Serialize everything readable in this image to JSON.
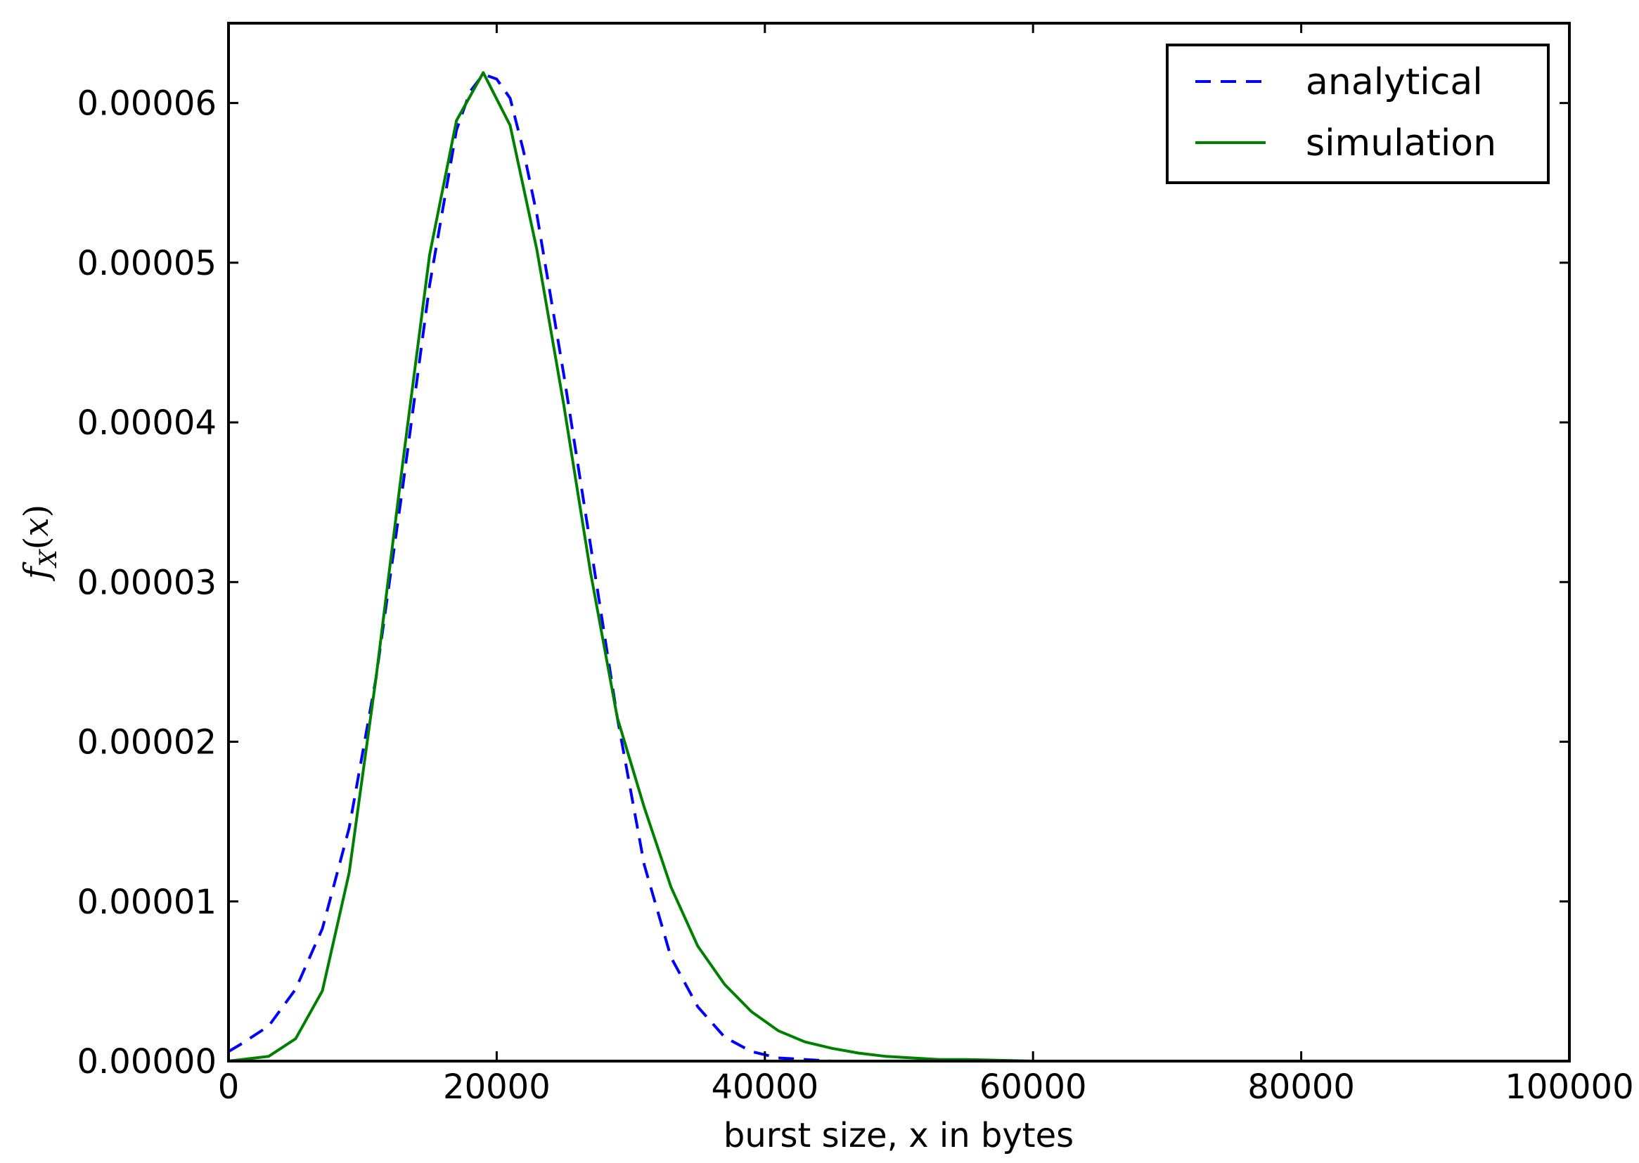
{
  "chart_data": {
    "type": "line",
    "title": "",
    "xlabel": "burst size, x in bytes",
    "ylabel": "f_X(x)",
    "xlim": [
      0,
      100000
    ],
    "ylim": [
      0,
      6.5e-05
    ],
    "xticks": [
      0,
      20000,
      40000,
      60000,
      80000,
      100000
    ],
    "xtick_labels": [
      "0",
      "20000",
      "40000",
      "60000",
      "80000",
      "100000"
    ],
    "yticks": [
      0,
      1e-05,
      2e-05,
      3e-05,
      4e-05,
      5e-05,
      6e-05
    ],
    "ytick_labels": [
      "0.00000",
      "0.00001",
      "0.00002",
      "0.00003",
      "0.00004",
      "0.00005",
      "0.00006"
    ],
    "grid": false,
    "legend_position": "top-right",
    "series": [
      {
        "name": "analytical",
        "style": "dashed",
        "color": "#0000ff",
        "x": [
          0,
          1000,
          3000,
          5000,
          7000,
          9000,
          11000,
          13000,
          15000,
          17000,
          18000,
          19000,
          20000,
          21000,
          22000,
          23000,
          25000,
          27000,
          29000,
          31000,
          33000,
          35000,
          37000,
          39000,
          41000,
          43000,
          45000,
          50000,
          55000,
          60000
        ],
        "y": [
          6e-07,
          1.1e-06,
          2.2e-06,
          4.5e-06,
          8.3e-06,
          1.46e-05,
          2.4e-05,
          3.6e-05,
          4.86e-05,
          5.83e-05,
          6.07e-05,
          6.18e-05,
          6.15e-05,
          6.03e-05,
          5.7e-05,
          5.3e-05,
          4.3e-05,
          3.23e-05,
          2.15e-05,
          1.23e-05,
          6.5e-06,
          3.4e-06,
          1.5e-06,
          6e-07,
          2e-07,
          1e-07,
          0.0,
          0.0,
          0.0,
          0.0
        ]
      },
      {
        "name": "simulation",
        "style": "solid",
        "color": "#008000",
        "x": [
          0,
          3000,
          5000,
          7000,
          9000,
          11000,
          13000,
          15000,
          17000,
          19000,
          21000,
          23000,
          25000,
          27000,
          29000,
          31000,
          33000,
          35000,
          37000,
          39000,
          41000,
          43000,
          45000,
          47000,
          49000,
          51000,
          53000,
          55000,
          60000
        ],
        "y": [
          0.0,
          3e-07,
          1.4e-06,
          4.4e-06,
          1.18e-05,
          2.4e-05,
          3.75e-05,
          5.05e-05,
          5.89e-05,
          6.19e-05,
          5.86e-05,
          5.08e-05,
          4.11e-05,
          3.06e-05,
          2.15e-05,
          1.59e-05,
          1.09e-05,
          7.2e-06,
          4.8e-06,
          3.1e-06,
          1.9e-06,
          1.2e-06,
          8e-07,
          5e-07,
          3e-07,
          2e-07,
          1e-07,
          1e-07,
          0.0
        ]
      }
    ]
  }
}
